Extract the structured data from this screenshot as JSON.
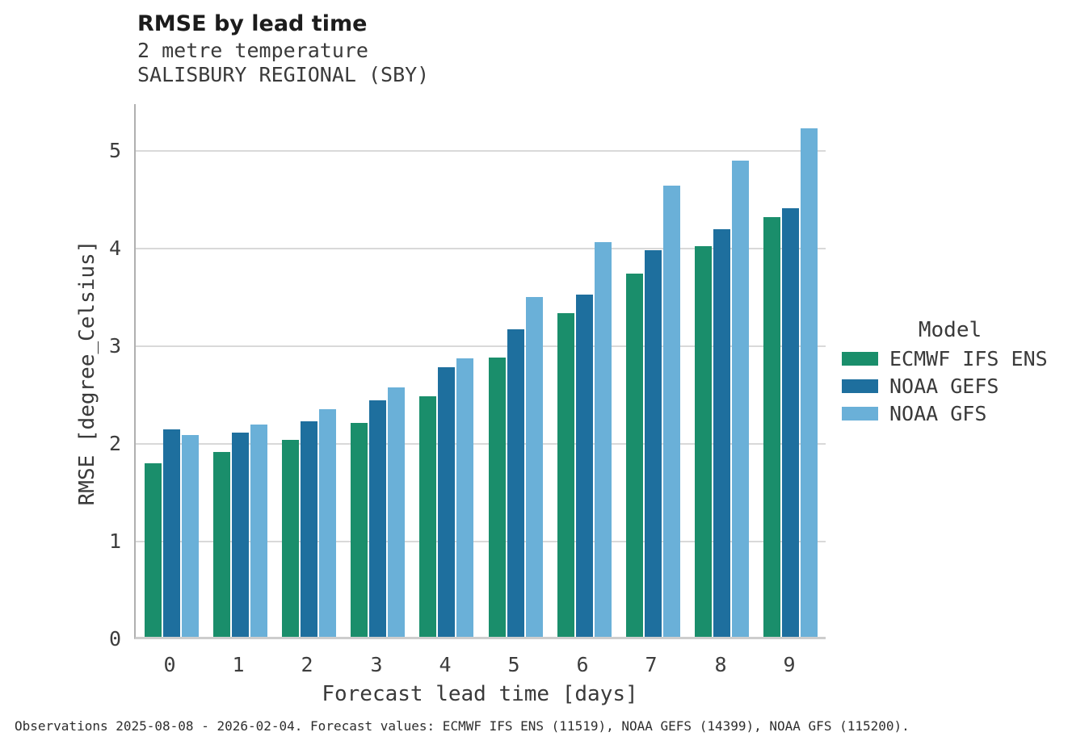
{
  "header": {
    "title": "RMSE by lead time",
    "subtitle_variable": "2 metre temperature",
    "subtitle_station": "SALISBURY REGIONAL (SBY)"
  },
  "footer": {
    "caption": "Observations 2025-08-08 - 2026-02-04. Forecast values: ECMWF IFS ENS (11519), NOAA GEFS (14399), NOAA GFS (115200)."
  },
  "chart_data": {
    "type": "bar",
    "title": "RMSE by lead time",
    "subtitle1": "2 metre temperature",
    "subtitle2": "SALISBURY REGIONAL (SBY)",
    "xlabel": "Forecast lead time [days]",
    "ylabel": "RMSE [degree_Celsius]",
    "categories": [
      "0",
      "1",
      "2",
      "3",
      "4",
      "5",
      "6",
      "7",
      "8",
      "9"
    ],
    "y_ticks": [
      0,
      1,
      2,
      3,
      4,
      5
    ],
    "ylim": [
      0,
      5.48
    ],
    "grid": true,
    "legend_title": "Model",
    "legend_position": "right",
    "series": [
      {
        "name": "ECMWF IFS ENS",
        "color": "#1a8e6b",
        "values": [
          1.78,
          1.89,
          2.02,
          2.19,
          2.46,
          2.86,
          3.31,
          3.72,
          4.0,
          4.3
        ]
      },
      {
        "name": "NOAA GEFS",
        "color": "#1e6f9e",
        "values": [
          2.12,
          2.09,
          2.21,
          2.42,
          2.76,
          3.15,
          3.5,
          3.96,
          4.17,
          4.39
        ]
      },
      {
        "name": "NOAA GFS",
        "color": "#6ab0d8",
        "values": [
          2.07,
          2.17,
          2.33,
          2.55,
          2.85,
          3.48,
          4.04,
          4.62,
          4.88,
          5.21
        ]
      }
    ]
  }
}
